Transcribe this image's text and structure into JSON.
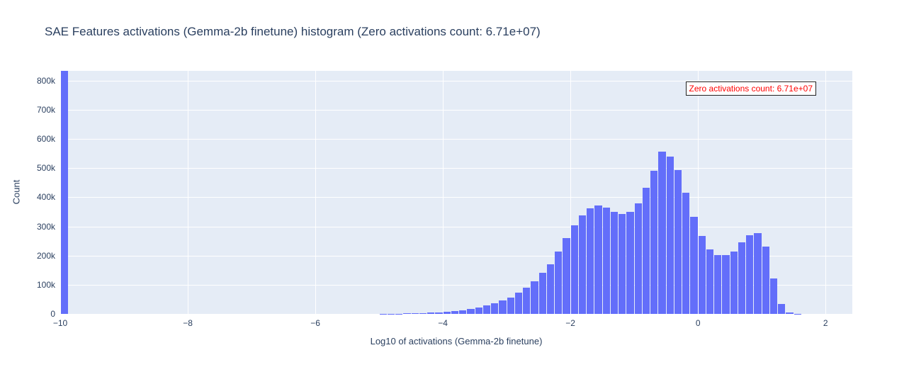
{
  "chart_data": {
    "type": "bar",
    "subtype": "histogram",
    "title": "SAE Features activations (Gemma-2b finetune) histogram (Zero activations count: 6.71e+07)",
    "xlabel": "Log10 of activations (Gemma-2b finetune)",
    "ylabel": "Count",
    "xlim": [
      -10,
      2.42
    ],
    "ylim": [
      0,
      834000
    ],
    "grid": true,
    "legend": "none",
    "bin_width": 0.125,
    "bin_left_edges": [
      -10,
      -9.875,
      -9.75,
      -9.625,
      -9.5,
      -9.375,
      -9.25,
      -9.125,
      -9,
      -8.875,
      -8.75,
      -8.625,
      -8.5,
      -8.375,
      -8.25,
      -8.125,
      -8,
      -7.875,
      -7.75,
      -7.625,
      -7.5,
      -7.375,
      -7.25,
      -7.125,
      -7,
      -6.875,
      -6.75,
      -6.625,
      -6.5,
      -6.375,
      -6.25,
      -6.125,
      -6,
      -5.875,
      -5.75,
      -5.625,
      -5.5,
      -5.375,
      -5.25,
      -5.125,
      -5,
      -4.875,
      -4.75,
      -4.625,
      -4.5,
      -4.375,
      -4.25,
      -4.125,
      -4,
      -3.875,
      -3.75,
      -3.625,
      -3.5,
      -3.375,
      -3.25,
      -3.125,
      -3,
      -2.875,
      -2.75,
      -2.625,
      -2.5,
      -2.375,
      -2.25,
      -2.125,
      -2,
      -1.875,
      -1.75,
      -1.625,
      -1.5,
      -1.375,
      -1.25,
      -1.125,
      -1,
      -0.875,
      -0.75,
      -0.625,
      -0.5,
      -0.375,
      -0.25,
      -0.125,
      0,
      0.125,
      0.25,
      0.375,
      0.5,
      0.625,
      0.75,
      0.875,
      1,
      1.125,
      1.25,
      1.375,
      1.5
    ],
    "counts": [
      67100000,
      0,
      0,
      0,
      0,
      0,
      0,
      0,
      0,
      0,
      0,
      0,
      0,
      0,
      0,
      0,
      0,
      0,
      0,
      0,
      0,
      0,
      0,
      0,
      0,
      0,
      0,
      0,
      0,
      0,
      0,
      0,
      0,
      0,
      0,
      0,
      0,
      0,
      0,
      0,
      400,
      700,
      1200,
      1800,
      2600,
      3400,
      4400,
      5400,
      7500,
      9500,
      12300,
      16400,
      22000,
      29000,
      36000,
      46000,
      57000,
      73000,
      91000,
      111000,
      140000,
      171000,
      215000,
      260000,
      304000,
      337000,
      363000,
      371000,
      365000,
      350000,
      342000,
      350000,
      380000,
      434000,
      491000,
      557000,
      541000,
      493000,
      415000,
      334000,
      267000,
      222000,
      202000,
      202000,
      214000,
      246000,
      271000,
      277000,
      230000,
      122000,
      34000,
      5000,
      1000
    ],
    "first_bin_clipped_at_top": true,
    "x_ticks": {
      "values": [
        -10,
        -8,
        -6,
        -4,
        -2,
        0,
        2
      ],
      "labels": [
        "−10",
        "−8",
        "−6",
        "−4",
        "−2",
        "0",
        "2"
      ]
    },
    "y_ticks": {
      "values": [
        0,
        100000,
        200000,
        300000,
        400000,
        500000,
        600000,
        700000,
        800000
      ],
      "labels": [
        "0",
        "100k",
        "200k",
        "300k",
        "400k",
        "500k",
        "600k",
        "700k",
        "800k"
      ]
    },
    "annotation": {
      "text": "Zero activations count: 6.71e+07"
    },
    "colors": {
      "bar": "#636efa",
      "plot_bg": "#e5ecf6",
      "grid": "#ffffff",
      "text": "#2a3f5f",
      "annotation_text": "#ff0000",
      "annotation_border": "#222222",
      "annotation_bg": "#ffffff",
      "page_bg": "#ffffff"
    }
  }
}
